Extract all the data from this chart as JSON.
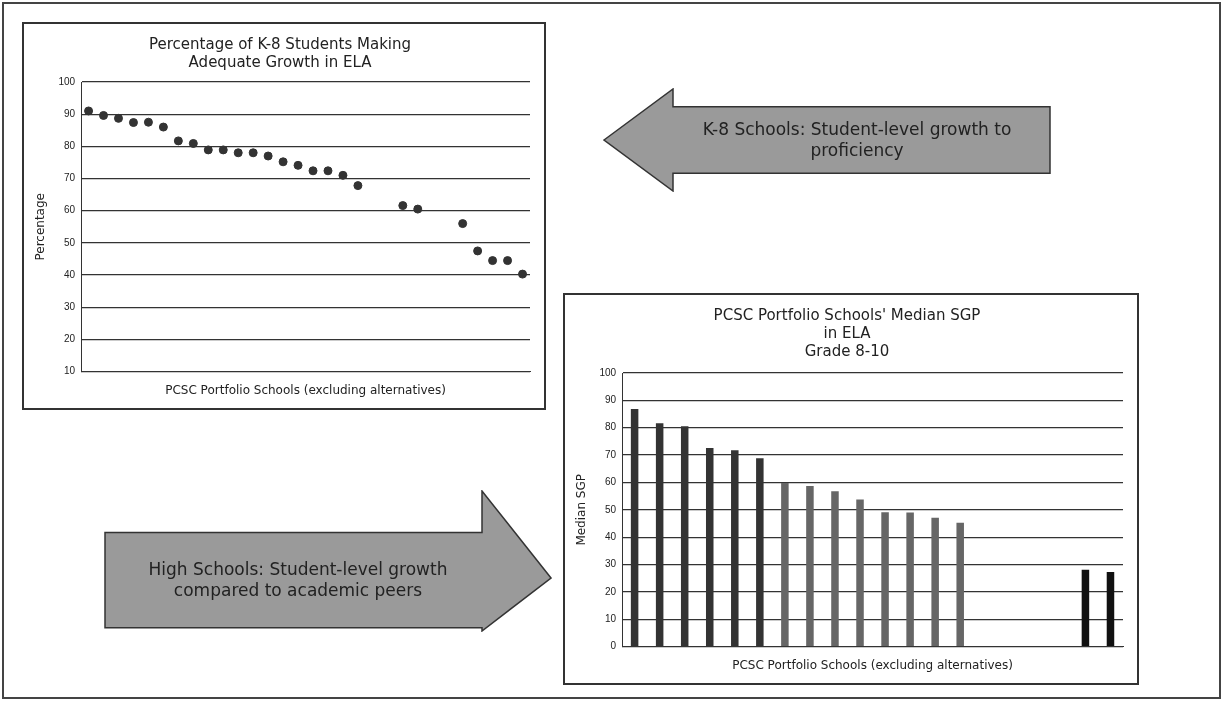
{
  "chart_data": [
    {
      "type": "scatter",
      "title": "Percentage of K-8 Students Making Adequate Growth in ELA",
      "xlabel": "PCSC Portfolio Schools (excluding alternatives)",
      "ylabel": "Percentage",
      "categories": [
        null,
        null,
        null,
        null,
        null,
        null,
        null,
        null,
        null,
        null,
        null,
        null,
        null,
        null,
        null,
        null,
        null,
        null,
        null,
        null,
        null,
        null,
        null,
        null,
        null,
        null,
        null,
        null,
        null,
        null
      ],
      "series": [
        {
          "color": "#333333",
          "values": [
            91,
            89.6,
            88.7,
            87.4,
            87.5,
            86,
            81.7,
            80.9,
            78.9,
            78.9,
            78,
            78,
            77,
            75.2,
            74.1,
            72.4,
            72.4,
            71,
            67.8,
            null,
            null,
            61.6,
            60.5,
            null,
            null,
            56,
            47.5,
            44.5,
            44.5,
            40.3
          ]
        }
      ],
      "ylim": [
        10,
        100
      ],
      "yticks": [
        10,
        20,
        30,
        40,
        50,
        60,
        70,
        80,
        90,
        100
      ],
      "grid": "y",
      "legend": false,
      "tick_labels": "y",
      "marker": "circle",
      "annotations": [
        "K-8 Schools: Student-level growth to proficiency"
      ]
    },
    {
      "type": "bar",
      "title": "PCSC Portfolio Schools' Median SGP in ELA",
      "subtitle": "Grade 8-10",
      "xlabel": "PCSC Portfolio Schools (excluding alternatives)",
      "ylabel": "Median SGP",
      "categories": [
        null,
        null,
        null,
        null,
        null,
        null,
        null,
        null,
        null,
        null,
        null,
        null,
        null,
        null,
        null,
        null,
        null,
        null,
        null,
        null
      ],
      "values": [
        86.8,
        81.6,
        80.5,
        72.6,
        71.8,
        68.8,
        59.8,
        58.7,
        56.8,
        53.8,
        49.1,
        49,
        47.1,
        45.3,
        null,
        null,
        null,
        null,
        28.1,
        27.3
      ],
      "colors": [
        "#333333",
        "#333333",
        "#333333",
        "#333333",
        "#333333",
        "#333333",
        "#666666",
        "#666666",
        "#666666",
        "#666666",
        "#666666",
        "#666666",
        "#666666",
        "#666666",
        "#666666",
        "#666666",
        "#666666",
        "#666666",
        "#111111",
        "#111111"
      ],
      "ylim": [
        0,
        100
      ],
      "yticks": [
        0,
        10,
        20,
        30,
        40,
        50,
        60,
        70,
        80,
        90,
        100
      ],
      "grid": "y",
      "legend": false,
      "tick_labels": "y",
      "annotations": [
        "High Schools: Student-level growth compared to academic peers"
      ]
    }
  ]
}
